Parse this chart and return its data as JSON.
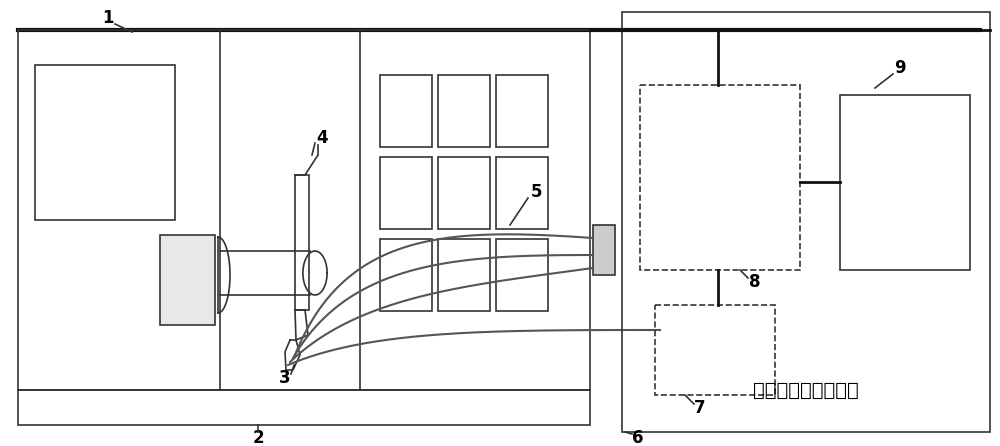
{
  "fig_width": 10.0,
  "fig_height": 4.46,
  "dpi": 100,
  "bg_color": "#ffffff",
  "lc": "#333333",
  "lc_dark": "#111111",
  "lc_gray": "#888888",
  "chinese_text": "可调控液氮供给装置"
}
